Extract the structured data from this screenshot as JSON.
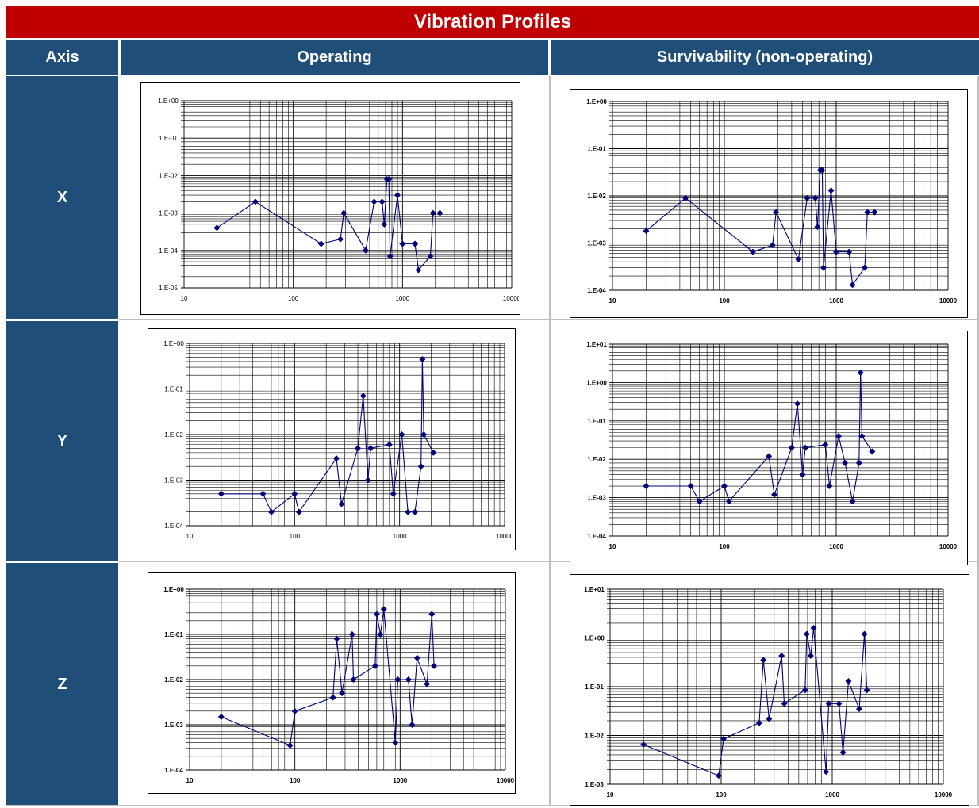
{
  "title": "Vibration Profiles",
  "headers": {
    "axis": "Axis",
    "operating": "Operating",
    "survivability": "Survivability (non-operating)"
  },
  "rows": [
    {
      "label": "X"
    },
    {
      "label": "Y"
    },
    {
      "label": "Z"
    }
  ],
  "colors": {
    "banner": "#c00000",
    "header": "#1f4e79",
    "series": "#00007a"
  },
  "chart_data": [
    {
      "id": "x-operating",
      "type": "line",
      "scale": "log-log",
      "grid": true,
      "tick_weight": "normal",
      "xlim": [
        10,
        10000
      ],
      "ylim": [
        1e-05,
        1
      ],
      "x_ticks": [
        10,
        100,
        1000,
        10000
      ],
      "x_tick_labels": [
        "10",
        "100",
        "1000",
        "10000"
      ],
      "y_ticks": [
        1e-05,
        0.0001,
        0.001,
        0.01,
        0.1,
        1
      ],
      "y_tick_labels": [
        "1.E-05",
        "1.E-04",
        "1.E-03",
        "1.E-02",
        "1.E-01",
        "1.E+00"
      ],
      "x": [
        20,
        45,
        180,
        270,
        290,
        460,
        550,
        650,
        680,
        720,
        750,
        770,
        900,
        1000,
        1300,
        1400,
        1800,
        1900,
        2200
      ],
      "y": [
        0.0004,
        0.002,
        0.00015,
        0.0002,
        0.001,
        0.0001,
        0.002,
        0.002,
        0.0005,
        0.008,
        0.008,
        7e-05,
        0.003,
        0.00015,
        0.00015,
        3e-05,
        7e-05,
        0.001,
        0.001
      ]
    },
    {
      "id": "x-survivability",
      "type": "line",
      "scale": "log-log",
      "grid": true,
      "tick_weight": "bold",
      "xlim": [
        10,
        10000
      ],
      "ylim": [
        0.0001,
        1
      ],
      "x_ticks": [
        10,
        100,
        1000,
        10000
      ],
      "x_tick_labels": [
        "10",
        "100",
        "1000",
        "10000"
      ],
      "y_ticks": [
        0.0001,
        0.001,
        0.01,
        0.1,
        1
      ],
      "y_tick_labels": [
        "1.E-04",
        "1.E-03",
        "1.E-02",
        "1.E-01",
        "1.E+00"
      ],
      "x": [
        20,
        45,
        180,
        270,
        290,
        460,
        550,
        650,
        680,
        720,
        750,
        770,
        900,
        1000,
        1300,
        1400,
        1800,
        1900,
        2200
      ],
      "y": [
        0.0018,
        0.009,
        0.00065,
        0.0009,
        0.0045,
        0.00045,
        0.009,
        0.009,
        0.0022,
        0.035,
        0.035,
        0.0003,
        0.013,
        0.00065,
        0.00065,
        0.00013,
        0.0003,
        0.0045,
        0.0045
      ]
    },
    {
      "id": "y-operating",
      "type": "line",
      "scale": "log-log",
      "grid": true,
      "tick_weight": "normal",
      "xlim": [
        10,
        10000
      ],
      "ylim": [
        0.0001,
        1
      ],
      "x_ticks": [
        10,
        100,
        1000,
        10000
      ],
      "x_tick_labels": [
        "10",
        "100",
        "1000",
        "10000"
      ],
      "y_ticks": [
        0.0001,
        0.001,
        0.01,
        0.1,
        1
      ],
      "y_tick_labels": [
        "1.E-04",
        "1.E-03",
        "1.E-02",
        "1.E-01",
        "1.E+00"
      ],
      "x": [
        20,
        50,
        60,
        100,
        110,
        250,
        280,
        400,
        450,
        500,
        530,
        800,
        870,
        1050,
        1200,
        1400,
        1600,
        1650,
        1700,
        2100
      ],
      "y": [
        0.0005,
        0.0005,
        0.0002,
        0.0005,
        0.0002,
        0.003,
        0.0003,
        0.005,
        0.07,
        0.001,
        0.005,
        0.006,
        0.0005,
        0.01,
        0.0002,
        0.0002,
        0.002,
        0.45,
        0.01,
        0.004
      ]
    },
    {
      "id": "y-survivability",
      "type": "line",
      "scale": "log-log",
      "grid": true,
      "tick_weight": "bold",
      "xlim": [
        10,
        10000
      ],
      "ylim": [
        0.0001,
        10
      ],
      "x_ticks": [
        10,
        100,
        1000,
        10000
      ],
      "x_tick_labels": [
        "10",
        "100",
        "1000",
        "10000"
      ],
      "y_ticks": [
        0.0001,
        0.001,
        0.01,
        0.1,
        1,
        10
      ],
      "y_tick_labels": [
        "1.E-04",
        "1.E-03",
        "1.E-02",
        "1.E-01",
        "1.E+00",
        "1.E+01"
      ],
      "x": [
        20,
        50,
        60,
        100,
        110,
        250,
        280,
        400,
        450,
        500,
        530,
        800,
        870,
        1050,
        1200,
        1400,
        1600,
        1650,
        1700,
        2100
      ],
      "y": [
        0.002,
        0.002,
        0.0008,
        0.002,
        0.0008,
        0.012,
        0.0012,
        0.02,
        0.28,
        0.004,
        0.02,
        0.024,
        0.002,
        0.04,
        0.008,
        0.0008,
        0.008,
        1.8,
        0.04,
        0.016
      ]
    },
    {
      "id": "z-operating",
      "type": "line",
      "scale": "log-log",
      "grid": true,
      "tick_weight": "bold",
      "xlim": [
        10,
        10000
      ],
      "ylim": [
        0.0001,
        1
      ],
      "x_ticks": [
        10,
        100,
        1000,
        10000
      ],
      "x_tick_labels": [
        "10",
        "100",
        "1000",
        "10000"
      ],
      "y_ticks": [
        0.0001,
        0.001,
        0.01,
        0.1,
        1
      ],
      "y_tick_labels": [
        "1.E-04",
        "1.E-03",
        "1.E-02",
        "1.E-01",
        "1.E+00"
      ],
      "x": [
        20,
        90,
        100,
        230,
        250,
        280,
        350,
        360,
        580,
        600,
        650,
        700,
        900,
        950,
        1200,
        1300,
        1450,
        1800,
        2000,
        2100
      ],
      "y": [
        0.0015,
        0.00035,
        0.002,
        0.004,
        0.08,
        0.005,
        0.1,
        0.01,
        0.02,
        0.28,
        0.1,
        0.36,
        0.0004,
        0.01,
        0.01,
        0.001,
        0.03,
        0.008,
        0.28,
        0.02
      ]
    },
    {
      "id": "z-survivability",
      "type": "line",
      "scale": "log-log",
      "grid": true,
      "tick_weight": "bold",
      "xlim": [
        10,
        10000
      ],
      "ylim": [
        0.001,
        10
      ],
      "x_ticks": [
        10,
        100,
        1000,
        10000
      ],
      "x_tick_labels": [
        "10",
        "100",
        "1000",
        "10000"
      ],
      "y_ticks": [
        0.001,
        0.01,
        0.1,
        1,
        10
      ],
      "y_tick_labels": [
        "1.E-03",
        "1.E-02",
        "1.E-01",
        "1.E+00",
        "1.E+01"
      ],
      "x": [
        20,
        95,
        105,
        220,
        240,
        270,
        350,
        370,
        570,
        590,
        640,
        680,
        880,
        930,
        1150,
        1250,
        1400,
        1750,
        1950,
        2050
      ],
      "y": [
        0.0065,
        0.0015,
        0.0085,
        0.018,
        0.35,
        0.022,
        0.43,
        0.045,
        0.085,
        1.2,
        0.43,
        1.6,
        0.0018,
        0.045,
        0.045,
        0.0045,
        0.13,
        0.035,
        1.2,
        0.085
      ]
    }
  ]
}
